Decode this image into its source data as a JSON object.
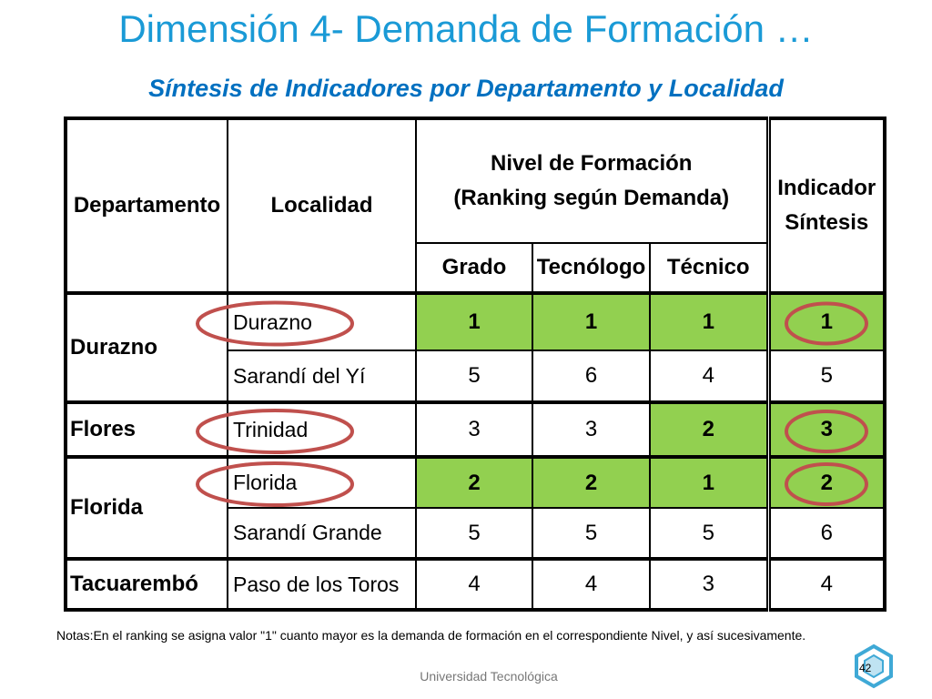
{
  "title": "Dimensión 4- Demanda de Formación …",
  "subtitle": "Síntesis de Indicadores por Departamento y Localidad",
  "table": {
    "headers": {
      "departamento": "Departamento",
      "localidad": "Localidad",
      "nivel": [
        "Nivel de Formación",
        "(Ranking según Demanda)"
      ],
      "levels": [
        "Grado",
        "Tecnólogo",
        "Técnico"
      ],
      "indicador": [
        "Indicador",
        "Síntesis"
      ]
    },
    "highlight_color": "#92d050",
    "groups": [
      {
        "departamento": "Durazno",
        "rows": [
          {
            "localidad": "Durazno",
            "values": [
              1,
              1,
              1,
              1
            ],
            "highlighted": [
              true,
              true,
              true,
              true
            ],
            "circled": true
          },
          {
            "localidad": "Sarandí del Yí",
            "values": [
              5,
              6,
              4,
              5
            ],
            "highlighted": [
              false,
              false,
              false,
              false
            ],
            "circled": false
          }
        ]
      },
      {
        "departamento": "Flores",
        "rows": [
          {
            "localidad": "Trinidad",
            "values": [
              3,
              3,
              2,
              3
            ],
            "highlighted": [
              false,
              false,
              true,
              true
            ],
            "circled": true
          }
        ]
      },
      {
        "departamento": "Florida",
        "rows": [
          {
            "localidad": "Florida",
            "values": [
              2,
              2,
              1,
              2
            ],
            "highlighted": [
              true,
              true,
              true,
              true
            ],
            "circled": true
          },
          {
            "localidad": "Sarandí Grande",
            "values": [
              5,
              5,
              5,
              6
            ],
            "highlighted": [
              false,
              false,
              false,
              false
            ],
            "circled": false
          }
        ]
      },
      {
        "departamento": "Tacuarembó",
        "rows": [
          {
            "localidad": "Paso de los Toros",
            "values": [
              4,
              4,
              3,
              4
            ],
            "highlighted": [
              false,
              false,
              false,
              false
            ],
            "circled": false
          }
        ]
      }
    ]
  },
  "note": "Notas:En el ranking se asigna valor \"1\" cuanto mayor es la demanda de formación en el correspondiente Nivel, y así sucesivamente.",
  "footer": "Universidad Tecnológica",
  "page_number": 42
}
